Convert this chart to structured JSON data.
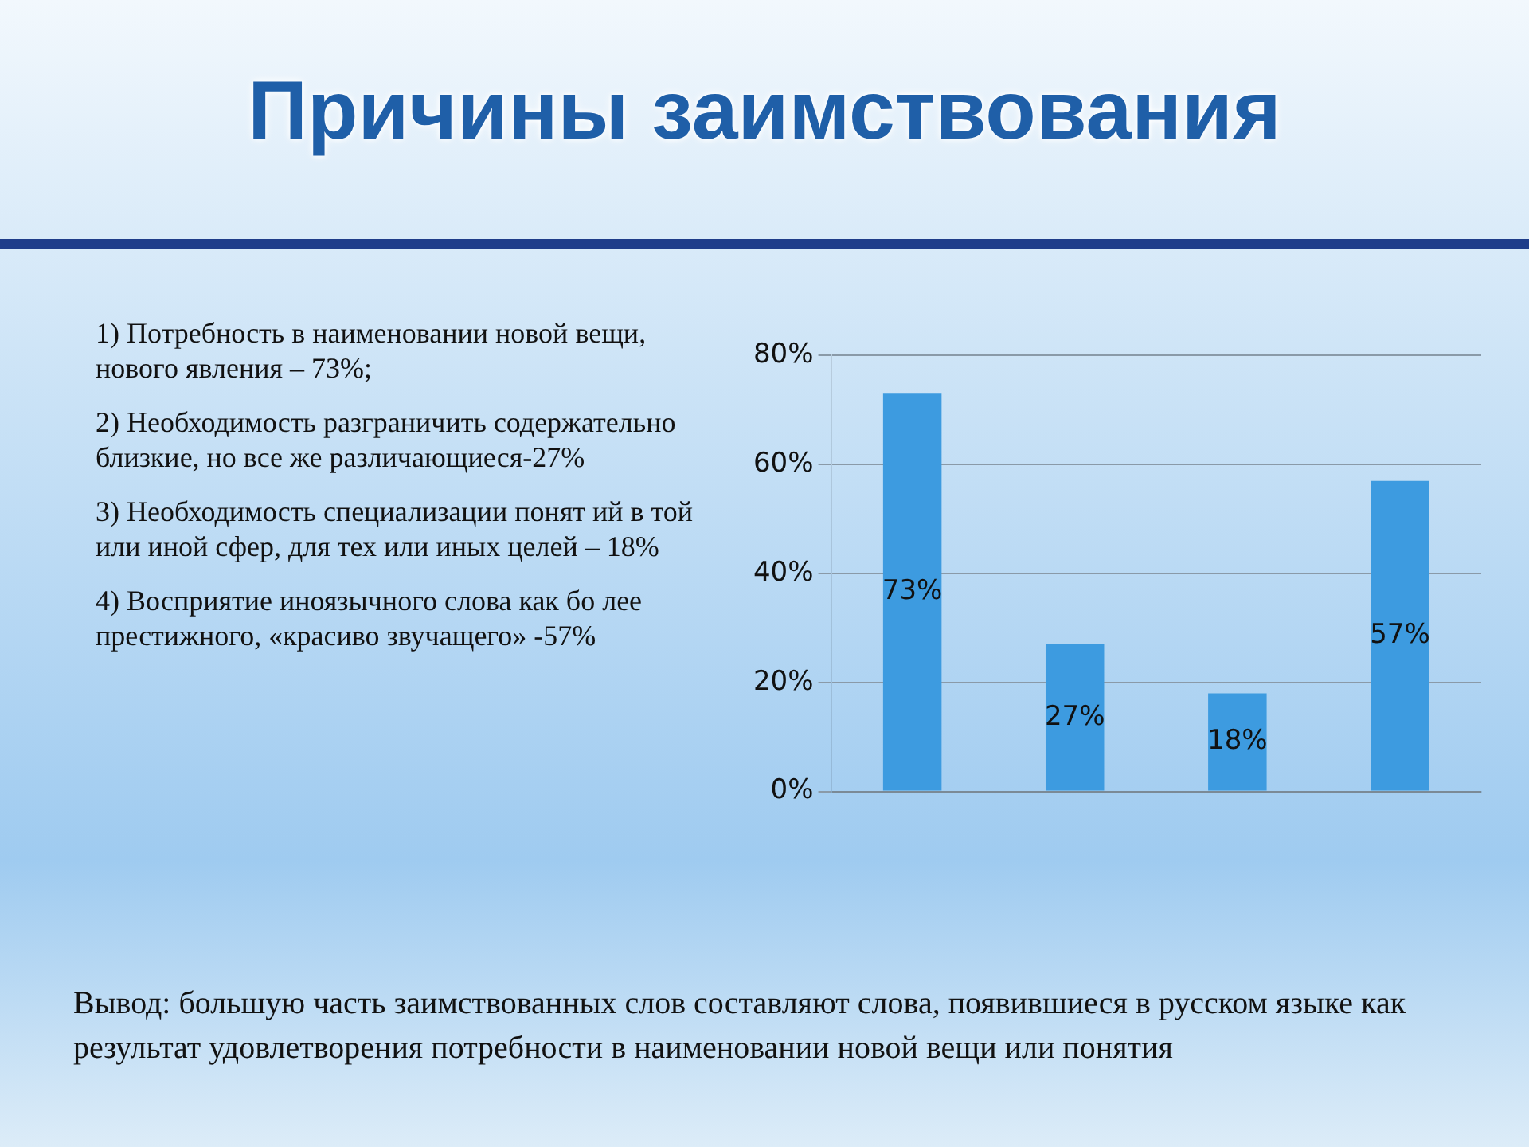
{
  "chart_data": {
    "type": "bar",
    "title": "Причины заимствования",
    "categories": [
      null,
      null,
      null,
      null
    ],
    "values": [
      73,
      27,
      18,
      57
    ],
    "value_labels": [
      "73%",
      "27%",
      "18%",
      "57%"
    ],
    "color": "#3d9be0",
    "ylim": [
      0,
      80
    ],
    "yticks": [
      {
        "value": 0,
        "label": "0%"
      },
      {
        "value": 20,
        "label": "20%"
      },
      {
        "value": 40,
        "label": "40%"
      },
      {
        "value": 60,
        "label": "60%"
      },
      {
        "value": 80,
        "label": "80%"
      }
    ],
    "grid": "y",
    "tick_labels": "y",
    "legend": false,
    "annotations": [
      "1) Потребность в наименовании новой вещи, нового явления – 73%;",
      "2) Необходимость разграничить содержательно близкие, но все же различающиеся-27%",
      "3) Необходимость специализации понят ий в той или иной сфер,   для тех или иных целей – 18%",
      "4) Восприятие иноязычного слова как бо лее престижного, «красиво звучащего» -57%",
      "Вывод: большую часть заимствованных слов  составляют слова, появившиеся в русском языке как результат удовлетворения потребности в наименовании новой вещи или понятия"
    ]
  }
}
